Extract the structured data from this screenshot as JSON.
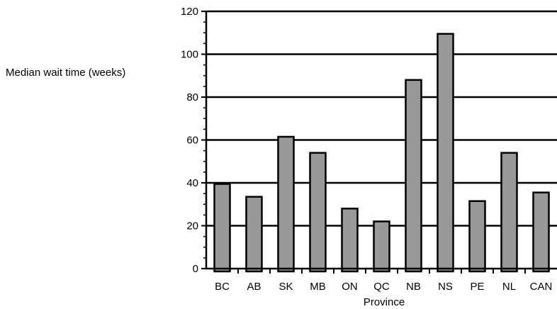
{
  "chart_data": {
    "type": "bar",
    "title": "",
    "xlabel": "Province",
    "ylabel": "Median wait time (weeks)",
    "categories": [
      "BC",
      "AB",
      "SK",
      "MB",
      "ON",
      "QC",
      "NB",
      "NS",
      "PE",
      "NL",
      "CAN"
    ],
    "values": [
      39.5,
      33.5,
      61.5,
      54,
      28,
      22,
      88,
      109.5,
      31.5,
      54,
      35.5
    ],
    "ylim": [
      0,
      120
    ],
    "yticks": [
      0,
      20,
      40,
      60,
      80,
      100,
      120
    ],
    "grid": true,
    "legend": "none",
    "colors": {
      "bar_fill": "#999999",
      "bar_stroke": "#000000",
      "gridline": "#000000"
    }
  }
}
